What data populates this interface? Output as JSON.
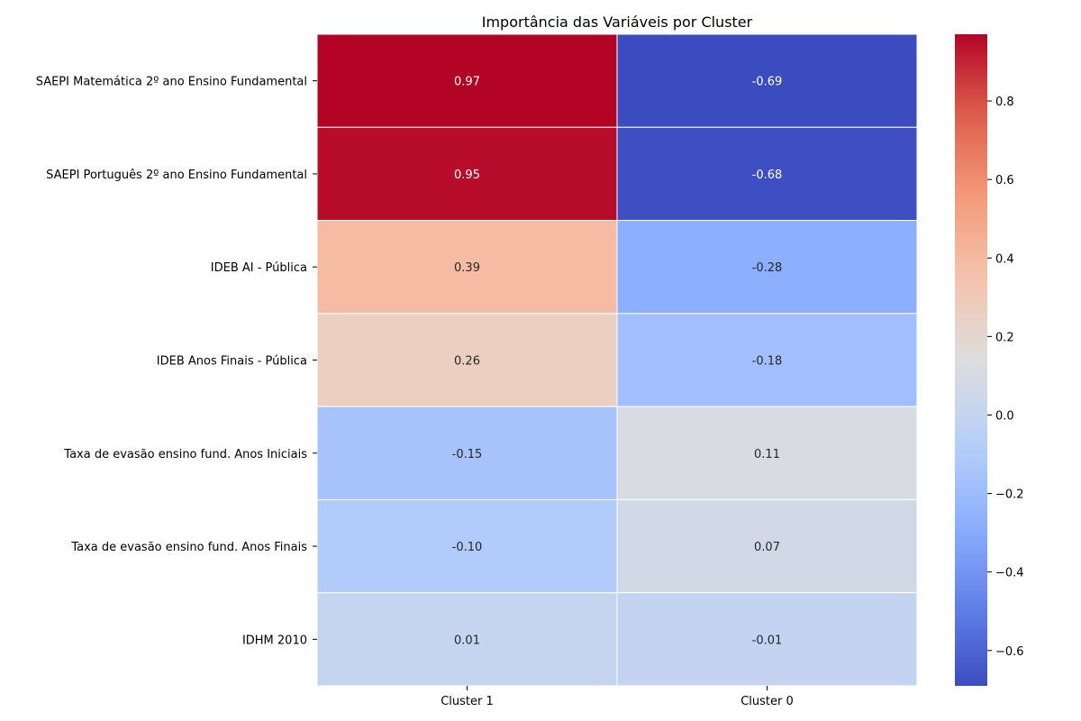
{
  "chart_data": {
    "type": "heatmap",
    "title": "Importância das Variáveis por Cluster",
    "columns": [
      "Cluster 1",
      "Cluster 0"
    ],
    "rows": [
      "SAEPI Matemática 2º ano Ensino Fundamental ",
      "SAEPI Português 2º ano Ensino Fundamental ",
      "IDEB AI - Pública",
      "IDEB Anos Finais - Pública",
      "Taxa de evasão ensino fund. Anos Iniciais",
      "Taxa de evasão ensino fund. Anos Finais ",
      "IDHM 2010 "
    ],
    "values": [
      [
        0.97,
        -0.69
      ],
      [
        0.95,
        -0.68
      ],
      [
        0.39,
        -0.28
      ],
      [
        0.26,
        -0.18
      ],
      [
        -0.15,
        0.11
      ],
      [
        -0.1,
        0.07
      ],
      [
        0.01,
        -0.01
      ]
    ],
    "value_labels": [
      [
        "0.97",
        "-0.69"
      ],
      [
        "0.95",
        "-0.68"
      ],
      [
        "0.39",
        "-0.28"
      ],
      [
        "0.26",
        "-0.18"
      ],
      [
        "-0.15",
        "0.11"
      ],
      [
        "-0.10",
        "0.07"
      ],
      [
        "0.01",
        "-0.01"
      ]
    ],
    "colormap": "coolwarm",
    "vmin": -0.69,
    "vmax": 0.97,
    "colorbar_ticks": [
      0.8,
      0.6,
      0.4,
      0.2,
      0.0,
      -0.2,
      -0.4,
      -0.6
    ],
    "colorbar_tick_labels": [
      "0.8",
      "0.6",
      "0.4",
      "0.2",
      "0.0",
      "−0.2",
      "−0.4",
      "−0.6"
    ],
    "annotated": true,
    "grid": false,
    "colorbar_position": "right"
  }
}
